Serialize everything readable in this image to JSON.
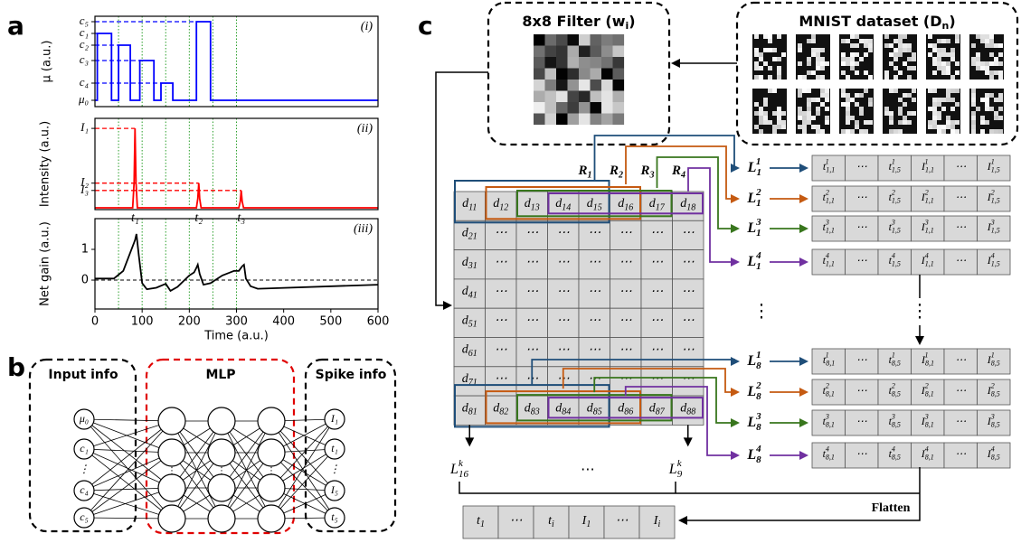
{
  "panel_labels": [
    "a",
    "b",
    "c"
  ],
  "chart_data": [
    {
      "type": "line",
      "annotation": "(i)",
      "ylabel": "μ (a.u.)",
      "xlim": [
        0,
        600
      ],
      "ylim": [
        0,
        1
      ],
      "yticks": [
        {
          "value": 0.94,
          "label": "c₅"
        },
        {
          "value": 0.81,
          "label": "c₁"
        },
        {
          "value": 0.68,
          "label": "c₂"
        },
        {
          "value": 0.51,
          "label": "c₃"
        },
        {
          "value": 0.26,
          "label": "c₄"
        },
        {
          "value": 0.07,
          "label": "μ₀"
        }
      ],
      "level_lines": true,
      "vlines": [
        50,
        100,
        150,
        200,
        250,
        300
      ],
      "vline_color": "#2ca02c",
      "x": [
        0,
        5,
        5,
        35,
        35,
        50,
        50,
        75,
        75,
        95,
        95,
        125,
        125,
        140,
        140,
        165,
        165,
        215,
        215,
        245,
        245,
        600
      ],
      "series": [
        {
          "color": "#0000ff",
          "values": [
            0.07,
            0.07,
            0.81,
            0.81,
            0.07,
            0.07,
            0.68,
            0.68,
            0.07,
            0.07,
            0.51,
            0.51,
            0.07,
            0.07,
            0.26,
            0.26,
            0.07,
            0.07,
            0.94,
            0.94,
            0.07,
            0.07
          ]
        }
      ]
    },
    {
      "type": "line",
      "annotation": "(ii)",
      "ylabel": "Intensity (a.u.)",
      "xlim": [
        0,
        600
      ],
      "ylim": [
        0,
        1
      ],
      "yticks": [
        {
          "value": 0.89,
          "label": "I₁"
        },
        {
          "value": 0.29,
          "label": "I₂"
        },
        {
          "value": 0.21,
          "label": "I₃"
        }
      ],
      "level_lines": true,
      "vlines": [
        50,
        100,
        150,
        200,
        250,
        300
      ],
      "vline_color": "#2ca02c",
      "x_annotations": [
        {
          "value": 85,
          "label": "t₁"
        },
        {
          "value": 220,
          "label": "t₂"
        },
        {
          "value": 310,
          "label": "t₃"
        }
      ],
      "x": [
        0,
        80,
        83,
        85,
        87,
        90,
        215,
        218,
        220,
        222,
        225,
        305,
        308,
        310,
        312,
        315,
        600
      ],
      "series": [
        {
          "color": "#ff0000",
          "values": [
            0.02,
            0.02,
            0.3,
            0.89,
            0.3,
            0.02,
            0.02,
            0.12,
            0.29,
            0.12,
            0.02,
            0.02,
            0.09,
            0.21,
            0.09,
            0.02,
            0.02
          ]
        }
      ]
    },
    {
      "type": "line",
      "annotation": "(iii)",
      "ylabel": "Net gain (a.u.)",
      "xlabel": "Time (a.u.)",
      "xlim": [
        0,
        600
      ],
      "ylim": [
        -0.94,
        2.0
      ],
      "xticks": [
        0,
        100,
        200,
        300,
        400,
        500,
        600
      ],
      "yticks": [
        0,
        1
      ],
      "hline": 0,
      "vlines": [
        50,
        100,
        150,
        200,
        250,
        300
      ],
      "vline_color": "#2ca02c",
      "x": [
        0,
        40,
        60,
        75,
        85,
        88,
        93,
        100,
        110,
        130,
        150,
        160,
        175,
        200,
        210,
        215,
        218,
        222,
        230,
        245,
        270,
        295,
        305,
        312,
        316,
        320,
        330,
        345,
        600
      ],
      "series": [
        {
          "color": "#000000",
          "values": [
            0.05,
            0.05,
            0.3,
            0.9,
            1.3,
            1.5,
            0.8,
            -0.1,
            -0.3,
            -0.25,
            -0.12,
            -0.35,
            -0.22,
            0.15,
            0.25,
            0.4,
            0.5,
            0.2,
            -0.15,
            -0.1,
            0.15,
            0.3,
            0.3,
            0.45,
            0.5,
            0.05,
            -0.2,
            -0.28,
            -0.15
          ]
        }
      ]
    }
  ],
  "network": {
    "input_title": "Input info",
    "hidden_title": "MLP",
    "output_title": "Spike info",
    "inputs": [
      "μ₀",
      "c₁",
      "⋮",
      "c₄",
      "c₅"
    ],
    "hidden_dots": "⋮",
    "outputs": [
      "I₁",
      "t₁",
      "⋮",
      "I₅",
      "t₅"
    ]
  },
  "pipeline": {
    "filter_title": {
      "base": "8x8 Filter (w",
      "sub": "i",
      "tail": ")"
    },
    "dataset_title": {
      "base": "MNIST dataset (D",
      "sub": "n",
      "tail": ")"
    },
    "windows": [
      {
        "label": {
          "base": "R",
          "sub": "1"
        },
        "color": "#1f4e79"
      },
      {
        "label": {
          "base": "R",
          "sub": "2"
        },
        "color": "#c55a11"
      },
      {
        "label": {
          "base": "R",
          "sub": "3"
        },
        "color": "#38761d"
      },
      {
        "label": {
          "base": "R",
          "sub": "4"
        },
        "color": "#7030a0"
      }
    ],
    "matrix": [
      [
        {
          "base": "d",
          "sub": "11"
        },
        {
          "base": "d",
          "sub": "12"
        },
        {
          "base": "d",
          "sub": "13"
        },
        {
          "base": "d",
          "sub": "14"
        },
        {
          "base": "d",
          "sub": "15"
        },
        {
          "base": "d",
          "sub": "16"
        },
        {
          "base": "d",
          "sub": "17"
        },
        {
          "base": "d",
          "sub": "18"
        }
      ],
      [
        {
          "base": "d",
          "sub": "21"
        },
        "⋯",
        "⋯",
        "⋯",
        "⋯",
        "⋯",
        "⋯",
        "⋯"
      ],
      [
        {
          "base": "d",
          "sub": "31"
        },
        "⋯",
        "⋯",
        "⋯",
        "⋯",
        "⋯",
        "⋯",
        "⋯"
      ],
      [
        {
          "base": "d",
          "sub": "41"
        },
        "⋯",
        "⋯",
        "⋯",
        "⋯",
        "⋯",
        "⋯",
        "⋯"
      ],
      [
        {
          "base": "d",
          "sub": "51"
        },
        "⋯",
        "⋯",
        "⋯",
        "⋯",
        "⋯",
        "⋯",
        "⋯"
      ],
      [
        {
          "base": "d",
          "sub": "61"
        },
        "⋯",
        "⋯",
        "⋯",
        "⋯",
        "⋯",
        "⋯",
        "⋯"
      ],
      [
        {
          "base": "d",
          "sub": "71"
        },
        "⋯",
        "⋯",
        "⋯",
        "⋯",
        "⋯",
        "⋯",
        "⋯"
      ],
      [
        {
          "base": "d",
          "sub": "81"
        },
        {
          "base": "d",
          "sub": "82"
        },
        {
          "base": "d",
          "sub": "83"
        },
        {
          "base": "d",
          "sub": "84"
        },
        {
          "base": "d",
          "sub": "85"
        },
        {
          "base": "d",
          "sub": "86"
        },
        {
          "base": "d",
          "sub": "87"
        },
        {
          "base": "d",
          "sub": "88"
        }
      ]
    ],
    "first_row_outputs": [
      {
        "label": {
          "base": "L",
          "sup": "1",
          "sub": "1"
        },
        "cells": [
          {
            "base": "t",
            "sup": "1",
            "sub": "1,1"
          },
          "⋯",
          {
            "base": "t",
            "sup": "1",
            "sub": "1,5"
          },
          {
            "base": "I",
            "sup": "1",
            "sub": "1,1"
          },
          "⋯",
          {
            "base": "I",
            "sup": "1",
            "sub": "1,5"
          }
        ]
      },
      {
        "label": {
          "base": "L",
          "sup": "2",
          "sub": "1"
        },
        "cells": [
          {
            "base": "t",
            "sup": "2",
            "sub": "1,1"
          },
          "⋯",
          {
            "base": "t",
            "sup": "2",
            "sub": "1,5"
          },
          {
            "base": "I",
            "sup": "2",
            "sub": "1,1"
          },
          "⋯",
          {
            "base": "I",
            "sup": "2",
            "sub": "1,5"
          }
        ]
      },
      {
        "label": {
          "base": "L",
          "sup": "3",
          "sub": "1"
        },
        "cells": [
          {
            "base": "t",
            "sup": "3",
            "sub": "1,1"
          },
          "⋯",
          {
            "base": "t",
            "sup": "3",
            "sub": "1,5"
          },
          {
            "base": "I",
            "sup": "3",
            "sub": "1,1"
          },
          "⋯",
          {
            "base": "I",
            "sup": "3",
            "sub": "1,5"
          }
        ]
      },
      {
        "label": {
          "base": "L",
          "sup": "4",
          "sub": "1"
        },
        "cells": [
          {
            "base": "t",
            "sup": "4",
            "sub": "1,1"
          },
          "⋯",
          {
            "base": "t",
            "sup": "4",
            "sub": "1,5"
          },
          {
            "base": "I",
            "sup": "4",
            "sub": "1,1"
          },
          "⋯",
          {
            "base": "I",
            "sup": "4",
            "sub": "1,5"
          }
        ]
      }
    ],
    "last_row_outputs": [
      {
        "label": {
          "base": "L",
          "sup": "1",
          "sub": "8"
        },
        "cells": [
          {
            "base": "t",
            "sup": "1",
            "sub": "8,1"
          },
          "⋯",
          {
            "base": "t",
            "sup": "1",
            "sub": "8,5"
          },
          {
            "base": "I",
            "sup": "1",
            "sub": "8,1"
          },
          "⋯",
          {
            "base": "I",
            "sup": "1",
            "sub": "8,5"
          }
        ]
      },
      {
        "label": {
          "base": "L",
          "sup": "2",
          "sub": "8"
        },
        "cells": [
          {
            "base": "t",
            "sup": "2",
            "sub": "8,1"
          },
          "⋯",
          {
            "base": "t",
            "sup": "2",
            "sub": "8,5"
          },
          {
            "base": "I",
            "sup": "2",
            "sub": "8,1"
          },
          "⋯",
          {
            "base": "I",
            "sup": "2",
            "sub": "8,5"
          }
        ]
      },
      {
        "label": {
          "base": "L",
          "sup": "3",
          "sub": "8"
        },
        "cells": [
          {
            "base": "t",
            "sup": "3",
            "sub": "8,1"
          },
          "⋯",
          {
            "base": "t",
            "sup": "3",
            "sub": "8,5"
          },
          {
            "base": "I",
            "sup": "3",
            "sub": "8,1"
          },
          "⋯",
          {
            "base": "I",
            "sup": "3",
            "sub": "8,5"
          }
        ]
      },
      {
        "label": {
          "base": "L",
          "sup": "4",
          "sub": "8"
        },
        "cells": [
          {
            "base": "t",
            "sup": "4",
            "sub": "8,1"
          },
          "⋯",
          {
            "base": "t",
            "sup": "4",
            "sub": "8,5"
          },
          {
            "base": "I",
            "sup": "4",
            "sub": "8,1"
          },
          "⋯",
          {
            "base": "I",
            "sup": "4",
            "sub": "8,5"
          }
        ]
      }
    ],
    "gap_dots": [
      "⋮",
      "⋮"
    ],
    "flatten": "Flatten",
    "bottom_labels": [
      {
        "base": "L",
        "sup": "k",
        "sub": "16"
      },
      "⋯",
      {
        "base": "L",
        "sup": "k",
        "sub": "9"
      }
    ],
    "output_vector": [
      {
        "base": "t",
        "sub": "1"
      },
      "⋯",
      {
        "base": "t",
        "sub": "i"
      },
      {
        "base": "I",
        "sub": "1"
      },
      "⋯",
      {
        "base": "I",
        "sub": "i"
      }
    ]
  }
}
